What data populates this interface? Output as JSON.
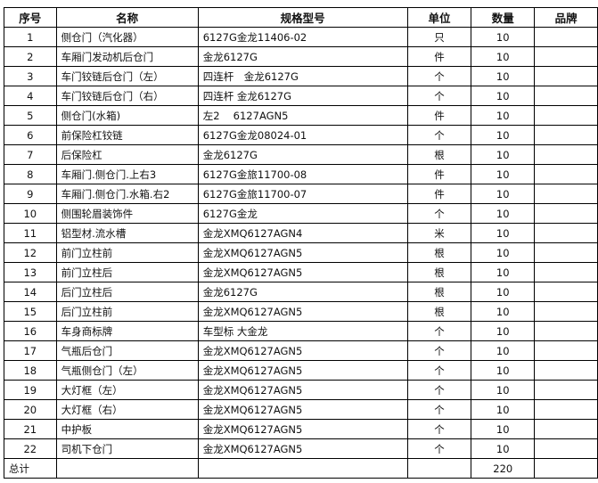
{
  "headers": [
    "序号",
    "名称",
    "规格型号",
    "单位",
    "数量",
    "品牌"
  ],
  "rows": [
    [
      "1",
      "侧仓门（汽化器）",
      "6127G金龙11406-02",
      "只",
      "10",
      ""
    ],
    [
      "2",
      "车厢门发动机后仓门",
      "金龙6127G",
      "件",
      "10",
      ""
    ],
    [
      "3",
      "车门铰链后仓门（左）",
      "四连杆　金龙6127G",
      "个",
      "10",
      ""
    ],
    [
      "4",
      "车门铰链后仓门（右）",
      "四连杆 金龙6127G",
      "个",
      "10",
      ""
    ],
    [
      "5",
      "侧仓门(水箱)",
      "左2　 6127AGN5",
      "件",
      "10",
      ""
    ],
    [
      "6",
      "前保险杠铰链",
      "6127G金龙08024-01",
      "个",
      "10",
      ""
    ],
    [
      "7",
      "后保险杠",
      "金龙6127G",
      "根",
      "10",
      ""
    ],
    [
      "8",
      "车厢门.侧仓门.上右3",
      "6127G金旅11700-08",
      "件",
      "10",
      ""
    ],
    [
      "9",
      "车厢门.侧仓门.水箱.右2",
      "6127G金旅11700-07",
      "件",
      "10",
      ""
    ],
    [
      "10",
      "侧围轮眉装饰件",
      "6127G金龙",
      "个",
      "10",
      ""
    ],
    [
      "11",
      "铝型材.流水槽",
      "金龙XMQ6127AGN4",
      "米",
      "10",
      ""
    ],
    [
      "12",
      "前门立柱前",
      "金龙XMQ6127AGN5",
      "根",
      "10",
      ""
    ],
    [
      "13",
      "前门立柱后",
      "金龙XMQ6127AGN5",
      "根",
      "10",
      ""
    ],
    [
      "14",
      "后门立柱后",
      "金龙6127G",
      "根",
      "10",
      ""
    ],
    [
      "15",
      "后门立柱前",
      "金龙XMQ6127AGN5",
      "根",
      "10",
      ""
    ],
    [
      "16",
      "车身商标牌",
      "车型标 大金龙",
      "个",
      "10",
      ""
    ],
    [
      "17",
      "气瓶后仓门",
      "金龙XMQ6127AGN5",
      "个",
      "10",
      ""
    ],
    [
      "18",
      "气瓶侧仓门（左）",
      "金龙XMQ6127AGN5",
      "个",
      "10",
      ""
    ],
    [
      "19",
      "大灯框（左）",
      "金龙XMQ6127AGN5",
      "个",
      "10",
      ""
    ],
    [
      "20",
      "大灯框（右）",
      "金龙XMQ6127AGN5",
      "个",
      "10",
      ""
    ],
    [
      "21",
      "中护板",
      "金龙XMQ6127AGN5",
      "个",
      "10",
      ""
    ],
    [
      "22",
      "司机下仓门",
      "金龙XMQ6127AGN5",
      "个",
      "10",
      ""
    ]
  ],
  "total": {
    "label": "总计",
    "quantity": "220"
  }
}
